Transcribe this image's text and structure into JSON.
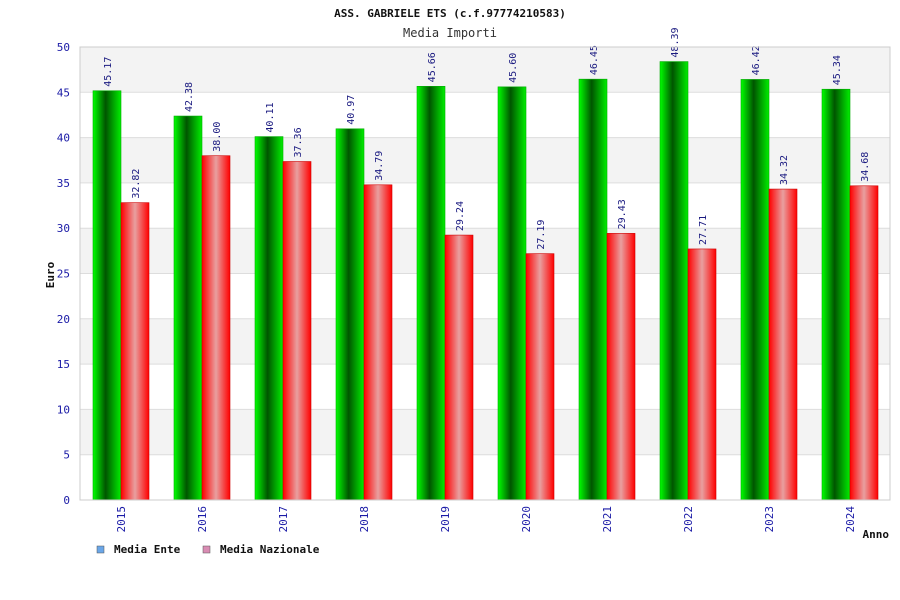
{
  "chart_data": {
    "type": "bar",
    "title": "ASS. GABRIELE ETS (c.f.97774210583)",
    "subtitle": "Media Importi",
    "xlabel": "Anno",
    "ylabel": "Euro",
    "ylim": [
      0,
      50
    ],
    "yticks": [
      "0",
      "5",
      "10",
      "15",
      "20",
      "25",
      "30",
      "35",
      "40",
      "45",
      "50"
    ],
    "grid": true,
    "legend_position": "bottom-left",
    "categories": [
      "2015",
      "2016",
      "2017",
      "2018",
      "2019",
      "2020",
      "2021",
      "2022",
      "2023",
      "2024"
    ],
    "series": [
      {
        "name": "Media Ente",
        "values": [
          45.17,
          42.38,
          40.11,
          40.97,
          45.66,
          45.6,
          46.45,
          48.39,
          46.42,
          45.34
        ],
        "labels": [
          "45.17",
          "42.38",
          "40.11",
          "40.97",
          "45.66",
          "45.60",
          "46.45",
          "48.39",
          "46.42",
          "45.34"
        ],
        "color": "#00cc00",
        "legend_color": "#6aa6e8"
      },
      {
        "name": "Media Nazionale",
        "values": [
          32.82,
          38.0,
          37.36,
          34.79,
          29.24,
          27.19,
          29.43,
          27.71,
          34.32,
          34.68
        ],
        "labels": [
          "32.82",
          "38.00",
          "37.36",
          "34.79",
          "29.24",
          "27.19",
          "29.43",
          "27.71",
          "34.32",
          "34.68"
        ],
        "color": "#ee1111",
        "legend_color": "#d98cb3"
      }
    ]
  }
}
